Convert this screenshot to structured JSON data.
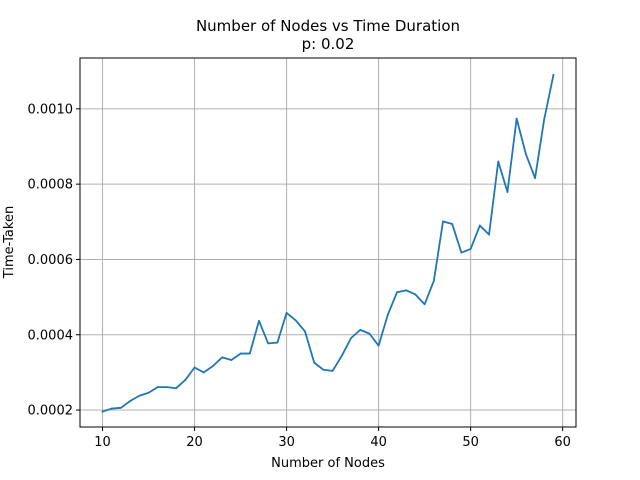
{
  "chart_data": {
    "type": "line",
    "title": "Number of Nodes vs Time Duration",
    "subtitle": "p: 0.02",
    "xlabel": "Number of Nodes",
    "ylabel": "Time-Taken",
    "xlim": [
      7.55,
      61.45
    ],
    "ylim": [
      0.000155,
      0.001135
    ],
    "x_ticks": [
      10,
      20,
      30,
      40,
      50,
      60
    ],
    "x_tick_labels": [
      "10",
      "20",
      "30",
      "40",
      "50",
      "60"
    ],
    "y_ticks": [
      0.0002,
      0.0004,
      0.0006,
      0.0008,
      0.001
    ],
    "y_tick_labels": [
      "0.0002",
      "0.0004",
      "0.0006",
      "0.0008",
      "0.0010"
    ],
    "grid": true,
    "line_color": "#1f77b4",
    "series": [
      {
        "x": [
          10,
          11,
          12,
          13,
          14,
          15,
          16,
          17,
          18,
          19,
          20,
          21,
          22,
          23,
          24,
          25,
          26,
          27,
          28,
          29,
          30,
          31,
          32,
          33,
          34,
          35,
          36,
          37,
          38,
          39,
          40,
          41,
          42,
          43,
          44,
          45,
          46,
          47,
          48,
          49,
          50,
          51,
          52,
          53,
          54,
          55,
          56,
          57,
          58,
          59
        ],
        "values": [
          0.000196,
          0.000204,
          0.000206,
          0.000224,
          0.000238,
          0.000246,
          0.000261,
          0.000261,
          0.000258,
          0.00028,
          0.000313,
          0.0003,
          0.000317,
          0.00034,
          0.000333,
          0.00035,
          0.00035,
          0.000437,
          0.000377,
          0.000379,
          0.000458,
          0.000438,
          0.000409,
          0.000326,
          0.000307,
          0.000304,
          0.000344,
          0.000391,
          0.000413,
          0.000403,
          0.000371,
          0.000453,
          0.000513,
          0.000518,
          0.000507,
          0.000481,
          0.000543,
          0.000701,
          0.000694,
          0.000618,
          0.000628,
          0.00069,
          0.000666,
          0.00086,
          0.000779,
          0.000974,
          0.00088,
          0.000816,
          0.000973,
          0.00109
        ]
      }
    ]
  }
}
